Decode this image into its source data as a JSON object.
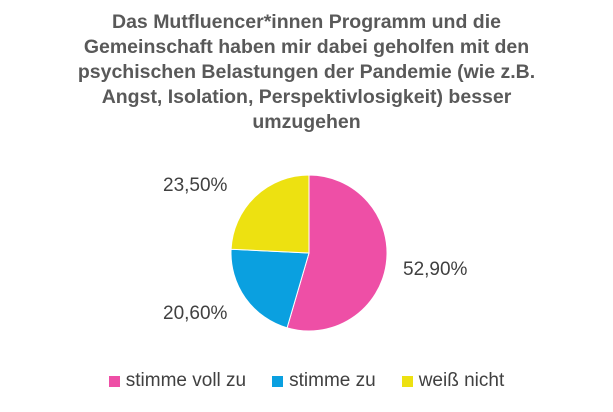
{
  "chart_data": {
    "type": "pie",
    "title": "Das Mutfluencer*innen Programm und die\nGemeinschaft haben mir dabei geholfen mit den\npsychischen Belastungen der Pandemie (wie z.B.\nAngst, Isolation, Perspektivlosigkeit) besser\numzugehen",
    "start_angle_deg": 0,
    "direction": "clockwise",
    "legend_position": "bottom",
    "slices": [
      {
        "label": "stimme voll zu",
        "value": 52.9,
        "value_label": "52,90%",
        "color": "#EE4FA6"
      },
      {
        "label": "stimme zu",
        "value": 20.6,
        "value_label": "20,60%",
        "color": "#0AA0E0"
      },
      {
        "label": "weiß nicht",
        "value": 23.5,
        "value_label": "23,50%",
        "color": "#EDE111"
      }
    ]
  }
}
